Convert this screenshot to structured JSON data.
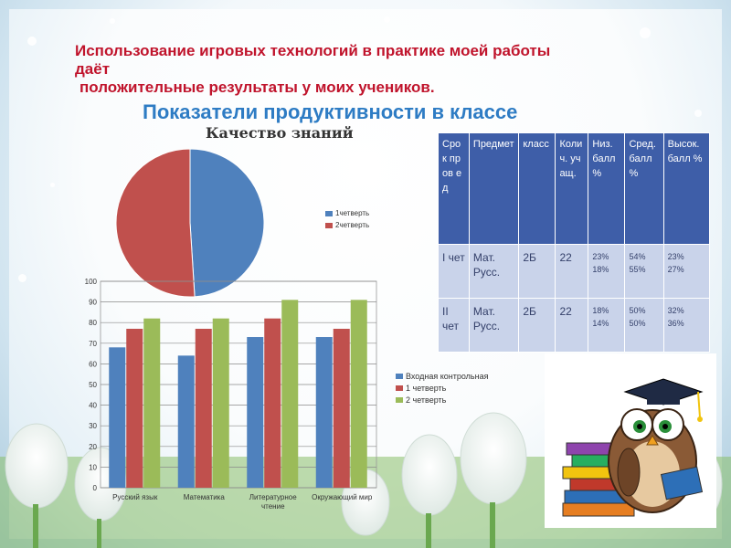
{
  "slide": {
    "heading_line1": "Использование игровых технологий  в практике моей работы",
    "heading_line2": "даёт",
    "heading_line3": "положительные результаты у   моих учеников.",
    "subheading": "Показатели продуктивности в классе"
  },
  "chart_data": [
    {
      "type": "pie",
      "title": "Качество знаний",
      "labels": [
        "1четверть",
        "2четверть"
      ],
      "values": [
        49,
        51
      ],
      "colors": [
        "#4f81bd",
        "#c0504d"
      ],
      "legend": "right"
    },
    {
      "type": "bar",
      "title": "",
      "categories": [
        "Русский язык",
        "Математика",
        "Литературное чтение",
        "Окружающий мир"
      ],
      "series": [
        {
          "name": "Входная контрольная",
          "values": [
            68,
            64,
            73,
            73
          ],
          "color": "#4f81bd"
        },
        {
          "name": "1 четверть",
          "values": [
            77,
            77,
            82,
            77
          ],
          "color": "#c0504d"
        },
        {
          "name": "2 четверть",
          "values": [
            82,
            82,
            91,
            91
          ],
          "color": "#9bbb59"
        }
      ],
      "ylim": [
        0,
        100
      ],
      "yticks": [
        "0",
        "10",
        "20",
        "30",
        "40",
        "50",
        "60",
        "70",
        "80",
        "90",
        "100"
      ],
      "grid": true,
      "legend": "right"
    },
    {
      "type": "table",
      "headers": [
        "Срок пров ед",
        "Предмет",
        "класс",
        "Колич. учащ.",
        "Низ. балл %",
        "Сред. балл %",
        "Высок. балл %"
      ],
      "rows": [
        {
          "term": "I чет",
          "subject_1": "Мат.",
          "subject_2": "Русс.",
          "class": "2Б",
          "count": "22",
          "low_1": "23%",
          "low_2": "18%",
          "mid_1": "54%",
          "mid_2": "55%",
          "high_1": "23%",
          "high_2": "27%"
        },
        {
          "term": "II чет",
          "subject_1": "Мат.",
          "subject_2": "Русс.",
          "class": "2Б",
          "count": "22",
          "low_1": "18%",
          "low_2": "14%",
          "mid_1": "50%",
          "mid_2": "50%",
          "high_1": "32%",
          "high_2": "36%"
        }
      ]
    }
  ]
}
